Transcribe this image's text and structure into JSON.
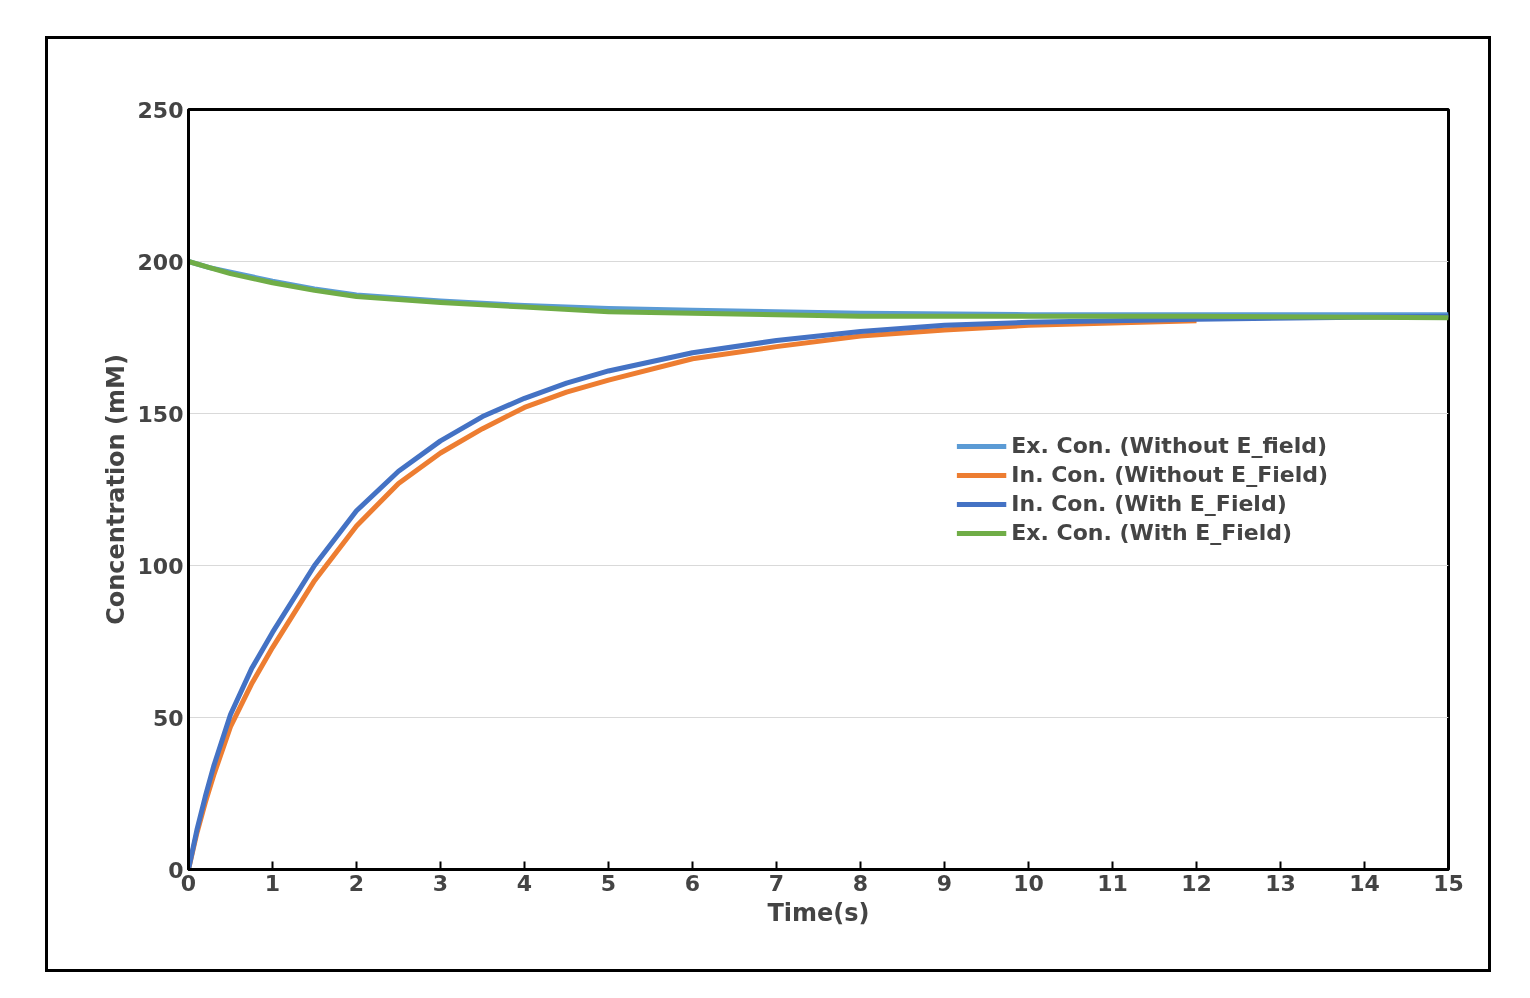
{
  "chart_data": {
    "type": "line",
    "xlabel": "Time(s)",
    "ylabel": "Concentration (mM)",
    "xlim": [
      0,
      15
    ],
    "ylim": [
      0,
      250
    ],
    "xticks": [
      0,
      1,
      2,
      3,
      4,
      5,
      6,
      7,
      8,
      9,
      10,
      11,
      12,
      13,
      14,
      15
    ],
    "yticks": [
      0,
      50,
      100,
      150,
      200,
      250
    ],
    "grid": "y",
    "legend": "right",
    "line_style": "solid",
    "marker": "none",
    "series": [
      {
        "name": "Ex. Con. (Without E_field)",
        "color": "#5b9bd5",
        "x": [
          0,
          0.25,
          0.5,
          1,
          1.5,
          2,
          3,
          4,
          5,
          6,
          8,
          10,
          12,
          15
        ],
        "values": [
          200,
          198,
          196.5,
          193.5,
          191,
          189,
          187,
          185.5,
          184.5,
          184,
          183,
          182.5,
          182.5,
          182.5
        ]
      },
      {
        "name": "In. Con. (Without E_Field)",
        "color": "#ed7d31",
        "x": [
          0,
          0.1,
          0.2,
          0.3,
          0.5,
          0.75,
          1,
          1.5,
          2,
          2.5,
          3,
          3.5,
          4,
          4.5,
          5,
          6,
          7,
          8,
          9,
          10,
          12
        ],
        "values": [
          0,
          12,
          22,
          31,
          47,
          61,
          73,
          95,
          113,
          127,
          137,
          145,
          152,
          157,
          161,
          168,
          172,
          175.5,
          177.5,
          179,
          180.5
        ]
      },
      {
        "name": "In. Con. (With E_Field)",
        "color": "#4472c4",
        "x": [
          0,
          0.1,
          0.2,
          0.3,
          0.5,
          0.75,
          1,
          1.5,
          2,
          2.5,
          3,
          3.5,
          4,
          4.5,
          5,
          6,
          7,
          8,
          9,
          10,
          12,
          15
        ],
        "values": [
          0,
          13,
          24,
          34,
          51,
          66,
          78,
          100,
          118,
          131,
          141,
          149,
          155,
          160,
          164,
          170,
          174,
          177,
          179,
          180,
          181,
          182
        ]
      },
      {
        "name": "Ex. Con. (With E_Field)",
        "color": "#70ad47",
        "x": [
          0,
          0.25,
          0.5,
          1,
          1.5,
          2,
          3,
          4,
          5,
          6,
          8,
          10,
          12,
          15
        ],
        "values": [
          200,
          198,
          196,
          193,
          190.5,
          188.5,
          186.5,
          185,
          183.5,
          183,
          182,
          182,
          182,
          181.5
        ]
      }
    ]
  }
}
